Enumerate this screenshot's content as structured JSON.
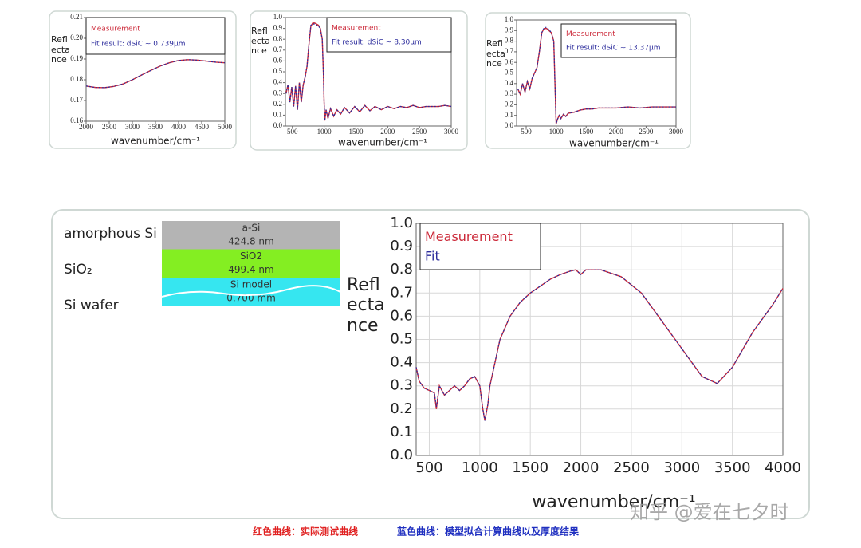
{
  "chart_data": [
    {
      "type": "line",
      "y_label": "Reflectance",
      "x_label": "wavenumber/cm⁻¹",
      "xlim": [
        2000,
        5000
      ],
      "xticks": [
        2000,
        2500,
        3000,
        3500,
        4000,
        4500,
        5000
      ],
      "ylim": [
        0.16,
        0.21
      ],
      "yticks": [
        0.16,
        0.17,
        0.18,
        0.19,
        {
          "value": 0.2,
          "label": "0.20"
        },
        0.21
      ],
      "grid": false,
      "x": [
        2000,
        2200,
        2400,
        2600,
        2800,
        3000,
        3200,
        3400,
        3600,
        3800,
        4000,
        4200,
        4400,
        4600,
        4800,
        5000
      ],
      "series": [
        {
          "name": "Measurement",
          "color": "#cc2a3a",
          "values": [
            0.177,
            0.1763,
            0.1762,
            0.1768,
            0.178,
            0.18,
            0.1823,
            0.1845,
            0.1866,
            0.1882,
            0.1893,
            0.1897,
            0.1895,
            0.189,
            0.1885,
            0.1882
          ]
        },
        {
          "name": "Fit result: dSiC ~ 0.739μm",
          "color": "#2c2c9c",
          "values": [
            0.177,
            0.1763,
            0.1762,
            0.1768,
            0.178,
            0.18,
            0.1823,
            0.1845,
            0.1866,
            0.1882,
            0.1893,
            0.1897,
            0.1895,
            0.189,
            0.1885,
            0.1882
          ]
        }
      ]
    },
    {
      "type": "line",
      "y_label": "Reflectance",
      "x_label": "wavenumber/cm⁻¹",
      "xlim": [
        390,
        3000
      ],
      "xticks": [
        500,
        1000,
        1500,
        2000,
        2500,
        3000
      ],
      "ylim": [
        0,
        1
      ],
      "yticks": [
        {
          "value": 0,
          "label": "0.0"
        },
        0.1,
        0.2,
        0.3,
        0.4,
        0.5,
        0.6,
        0.7,
        0.8,
        0.9,
        {
          "value": 1,
          "label": "1.0"
        }
      ],
      "grid": false,
      "x": [
        400,
        430,
        460,
        490,
        520,
        550,
        580,
        610,
        640,
        670,
        700,
        730,
        760,
        790,
        820,
        850,
        880,
        910,
        940,
        970,
        990,
        1000,
        1010,
        1030,
        1060,
        1100,
        1150,
        1200,
        1260,
        1320,
        1400,
        1480,
        1560,
        1640,
        1720,
        1800,
        1900,
        2000,
        2100,
        2200,
        2300,
        2400,
        2500,
        2600,
        2700,
        2800,
        2900,
        3000
      ],
      "series": [
        {
          "name": "Measurement",
          "color": "#cc2a3a",
          "values": [
            0.3,
            0.38,
            0.22,
            0.36,
            0.18,
            0.37,
            0.15,
            0.4,
            0.22,
            0.38,
            0.45,
            0.55,
            0.75,
            0.92,
            0.95,
            0.95,
            0.94,
            0.93,
            0.9,
            0.8,
            0.45,
            0.2,
            0.05,
            0.15,
            0.07,
            0.16,
            0.09,
            0.15,
            0.11,
            0.17,
            0.12,
            0.18,
            0.13,
            0.19,
            0.14,
            0.18,
            0.15,
            0.18,
            0.16,
            0.18,
            0.17,
            0.19,
            0.17,
            0.18,
            0.18,
            0.18,
            0.19,
            0.18
          ]
        },
        {
          "name": "Fit result: dSiC ~ 8.30μm",
          "color": "#2c2c9c",
          "values": [
            0.3,
            0.38,
            0.22,
            0.36,
            0.18,
            0.37,
            0.15,
            0.4,
            0.22,
            0.38,
            0.45,
            0.55,
            0.75,
            0.93,
            0.94,
            0.94,
            0.93,
            0.92,
            0.9,
            0.8,
            0.45,
            0.2,
            0.05,
            0.15,
            0.07,
            0.16,
            0.09,
            0.15,
            0.11,
            0.17,
            0.12,
            0.18,
            0.13,
            0.19,
            0.14,
            0.18,
            0.15,
            0.18,
            0.16,
            0.18,
            0.17,
            0.19,
            0.17,
            0.18,
            0.18,
            0.18,
            0.19,
            0.18
          ]
        }
      ]
    },
    {
      "type": "line",
      "y_label": "Reflectance",
      "x_label": "wavenumber/cm⁻¹",
      "xlim": [
        340,
        3000
      ],
      "xticks": [
        500,
        1000,
        1500,
        2000,
        2500,
        3000
      ],
      "ylim": [
        0,
        1
      ],
      "yticks": [
        {
          "value": 0,
          "label": "0.0"
        },
        0.1,
        0.2,
        0.3,
        0.4,
        0.5,
        0.6,
        0.7,
        0.8,
        0.9,
        {
          "value": 1,
          "label": "1.0"
        }
      ],
      "grid": false,
      "x": [
        360,
        400,
        440,
        480,
        520,
        560,
        600,
        640,
        680,
        720,
        760,
        800,
        840,
        880,
        920,
        960,
        980,
        1000,
        1020,
        1050,
        1080,
        1120,
        1160,
        1200,
        1300,
        1400,
        1500,
        1600,
        1700,
        1800,
        1900,
        2000,
        2200,
        2400,
        2600,
        2800,
        3000
      ],
      "series": [
        {
          "name": "Measurement",
          "color": "#cc2a3a",
          "values": [
            0.35,
            0.3,
            0.4,
            0.32,
            0.42,
            0.35,
            0.45,
            0.5,
            0.55,
            0.7,
            0.88,
            0.92,
            0.92,
            0.9,
            0.88,
            0.8,
            0.4,
            0.02,
            0.06,
            0.1,
            0.07,
            0.11,
            0.09,
            0.12,
            0.13,
            0.15,
            0.16,
            0.16,
            0.17,
            0.17,
            0.17,
            0.17,
            0.18,
            0.17,
            0.18,
            0.18,
            0.18
          ]
        },
        {
          "name": "Fit result: dSiC ~ 13.37μm",
          "color": "#2c2c9c",
          "values": [
            0.35,
            0.3,
            0.4,
            0.32,
            0.42,
            0.35,
            0.45,
            0.5,
            0.55,
            0.7,
            0.88,
            0.93,
            0.93,
            0.91,
            0.88,
            0.8,
            0.4,
            0.02,
            0.06,
            0.1,
            0.07,
            0.11,
            0.09,
            0.12,
            0.13,
            0.15,
            0.16,
            0.16,
            0.17,
            0.17,
            0.17,
            0.17,
            0.18,
            0.17,
            0.18,
            0.18,
            0.18
          ]
        }
      ]
    },
    {
      "type": "line",
      "y_label": "Reflectance",
      "x_label": "wavenumber/cm⁻¹",
      "xlim": [
        370,
        4000
      ],
      "xticks": [
        500,
        1000,
        1500,
        2000,
        2500,
        3000,
        3500,
        4000
      ],
      "ylim": [
        0,
        1
      ],
      "yticks": [
        {
          "value": 0,
          "label": "0.0"
        },
        0.1,
        0.2,
        0.3,
        0.4,
        0.5,
        0.6,
        0.7,
        0.8,
        0.9,
        {
          "value": 1,
          "label": "1.0"
        }
      ],
      "grid": true,
      "x": [
        370,
        400,
        450,
        500,
        550,
        570,
        600,
        650,
        700,
        750,
        800,
        850,
        900,
        950,
        1000,
        1030,
        1050,
        1080,
        1100,
        1200,
        1300,
        1400,
        1500,
        1600,
        1700,
        1800,
        1900,
        1950,
        2000,
        2050,
        2200,
        2400,
        2600,
        2800,
        3000,
        3200,
        3350,
        3500,
        3700,
        3900,
        4000
      ],
      "series": [
        {
          "name": "Measurement",
          "color": "#cc2a3a",
          "values": [
            0.38,
            0.32,
            0.29,
            0.28,
            0.27,
            0.2,
            0.3,
            0.26,
            0.28,
            0.3,
            0.28,
            0.3,
            0.33,
            0.34,
            0.3,
            0.2,
            0.15,
            0.22,
            0.3,
            0.5,
            0.6,
            0.66,
            0.7,
            0.73,
            0.76,
            0.78,
            0.795,
            0.8,
            0.78,
            0.8,
            0.8,
            0.77,
            0.7,
            0.58,
            0.46,
            0.34,
            0.31,
            0.38,
            0.53,
            0.65,
            0.72
          ]
        },
        {
          "name": "Fit",
          "color": "#2c2c9c",
          "values": [
            0.38,
            0.32,
            0.29,
            0.28,
            0.27,
            0.21,
            0.3,
            0.26,
            0.28,
            0.3,
            0.28,
            0.3,
            0.33,
            0.34,
            0.3,
            0.2,
            0.15,
            0.22,
            0.3,
            0.5,
            0.6,
            0.66,
            0.7,
            0.73,
            0.76,
            0.78,
            0.795,
            0.8,
            0.78,
            0.8,
            0.8,
            0.77,
            0.7,
            0.58,
            0.46,
            0.34,
            0.31,
            0.38,
            0.53,
            0.65,
            0.72
          ]
        }
      ]
    }
  ],
  "layers": [
    {
      "name": "amorphous Si",
      "label": "a-Si",
      "thickness": "424.8 nm",
      "color": "#b4b4b4"
    },
    {
      "name": "SiO₂",
      "label": "SiO2",
      "thickness": "499.4 nm",
      "color": "#84ee22"
    },
    {
      "name": "Si wafer",
      "label": "Si model",
      "thickness": "0.700 mm",
      "color": "#36e6f0"
    }
  ],
  "notes": [
    {
      "text": "红色曲线：实际测试曲线",
      "color": "#e02020"
    },
    {
      "text": "蓝色曲线：模型拟合计算曲线以及厚度结果",
      "color": "#2030c0"
    }
  ],
  "watermark": "知乎 @爱在七夕时"
}
